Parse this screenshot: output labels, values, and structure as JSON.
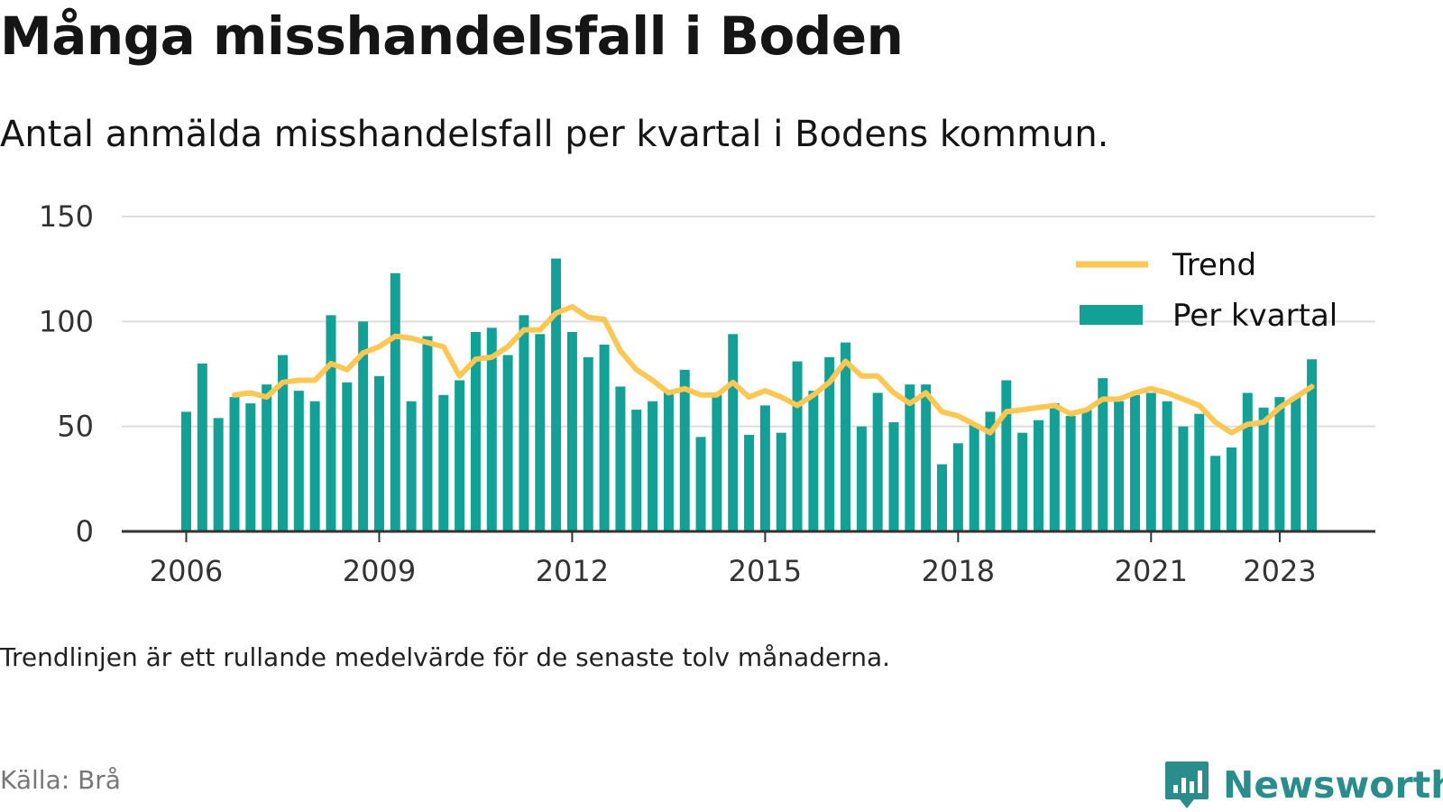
{
  "title": "Många misshandelsfall i Boden",
  "subtitle": "Antal anmälda misshandelsfall per kvartal i Bodens kommun.",
  "note": "Trendlinjen är ett rullande medelvärde för de senaste tolv månaderna.",
  "source": "Källa: Brå",
  "brand": {
    "name": "Newsworthy",
    "icon": "bar-chart-icon"
  },
  "colors": {
    "bars": "#13a096",
    "trend": "#fbc755",
    "grid": "#dddddd",
    "axis": "#333333",
    "brand": "#2b8c8c"
  },
  "chart_data": {
    "type": "bar",
    "x_label": "",
    "y_label": "",
    "ylim": [
      0,
      150
    ],
    "yticks": [
      0,
      50,
      100,
      150
    ],
    "xticks": [
      "2006",
      "2009",
      "2012",
      "2015",
      "2018",
      "2021",
      "2023"
    ],
    "grid": true,
    "legend_position": "top-right",
    "categories": [
      "2006 Q1",
      "2006 Q2",
      "2006 Q3",
      "2006 Q4",
      "2007 Q1",
      "2007 Q2",
      "2007 Q3",
      "2007 Q4",
      "2008 Q1",
      "2008 Q2",
      "2008 Q3",
      "2008 Q4",
      "2009 Q1",
      "2009 Q2",
      "2009 Q3",
      "2009 Q4",
      "2010 Q1",
      "2010 Q2",
      "2010 Q3",
      "2010 Q4",
      "2011 Q1",
      "2011 Q2",
      "2011 Q3",
      "2011 Q4",
      "2012 Q1",
      "2012 Q2",
      "2012 Q3",
      "2012 Q4",
      "2013 Q1",
      "2013 Q2",
      "2013 Q3",
      "2013 Q4",
      "2014 Q1",
      "2014 Q2",
      "2014 Q3",
      "2014 Q4",
      "2015 Q1",
      "2015 Q2",
      "2015 Q3",
      "2015 Q4",
      "2016 Q1",
      "2016 Q2",
      "2016 Q3",
      "2016 Q4",
      "2017 Q1",
      "2017 Q2",
      "2017 Q3",
      "2017 Q4",
      "2018 Q1",
      "2018 Q2",
      "2018 Q3",
      "2018 Q4",
      "2019 Q1",
      "2019 Q2",
      "2019 Q3",
      "2019 Q4",
      "2020 Q1",
      "2020 Q2",
      "2020 Q3",
      "2020 Q4",
      "2021 Q1",
      "2021 Q2",
      "2021 Q3",
      "2021 Q4",
      "2022 Q1",
      "2022 Q2",
      "2022 Q3",
      "2022 Q4",
      "2023 Q1",
      "2023 Q2",
      "2023 Q3"
    ],
    "series": [
      {
        "name": "Per kvartal",
        "type": "bar",
        "values": [
          57,
          80,
          54,
          64,
          61,
          70,
          84,
          67,
          62,
          103,
          71,
          100,
          74,
          123,
          62,
          93,
          65,
          72,
          95,
          97,
          84,
          103,
          94,
          130,
          95,
          83,
          89,
          69,
          58,
          62,
          67,
          77,
          45,
          65,
          94,
          46,
          60,
          47,
          81,
          67,
          83,
          90,
          50,
          66,
          52,
          70,
          70,
          32,
          42,
          51,
          57,
          72,
          47,
          53,
          61,
          55,
          58,
          73,
          62,
          65,
          66,
          62,
          50,
          56,
          36,
          40,
          66,
          59,
          64,
          64,
          82
        ]
      },
      {
        "name": "Trend",
        "type": "line",
        "values": [
          null,
          null,
          null,
          65,
          66,
          64,
          71,
          72,
          72,
          80,
          77,
          85,
          88,
          93,
          92,
          90,
          88,
          74,
          82,
          83,
          88,
          96,
          96,
          104,
          107,
          102,
          101,
          86,
          77,
          72,
          66,
          68,
          65,
          65,
          71,
          64,
          67,
          64,
          60,
          65,
          71,
          81,
          74,
          74,
          66,
          61,
          66,
          57,
          55,
          51,
          47,
          57,
          58,
          59,
          60,
          56,
          58,
          63,
          63,
          66,
          68,
          66,
          63,
          60,
          52,
          47,
          51,
          52,
          59,
          64,
          69
        ]
      }
    ]
  }
}
